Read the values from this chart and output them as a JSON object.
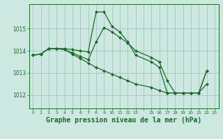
{
  "background_color": "#cce8e0",
  "grid_color": "#99ccbb",
  "line_color": "#1a6b2a",
  "marker": "D",
  "markersize": 2.0,
  "linewidth": 0.9,
  "title": "Graphe pression niveau de la mer (hPa)",
  "title_fontsize": 7,
  "tick_color": "#1a6b2a",
  "yticks": [
    1012,
    1013,
    1014,
    1015
  ],
  "xtick_labels": [
    "0",
    "1",
    "2",
    "3",
    "4",
    "5",
    "6",
    "7",
    "8",
    "9",
    "10",
    "11",
    "12",
    "13",
    "",
    "15",
    "16",
    "17",
    "18",
    "19",
    "20",
    "21",
    "22",
    "23"
  ],
  "xlim": [
    -0.5,
    23.5
  ],
  "ylim": [
    1011.4,
    1016.1
  ],
  "series": [
    [
      1013.8,
      1013.85,
      1014.1,
      1014.1,
      1014.1,
      1014.05,
      1014.0,
      1013.95,
      1015.75,
      1015.75,
      1015.1,
      1014.85,
      1014.4,
      1013.8,
      null,
      1013.5,
      1013.25,
      1012.1,
      1012.1,
      1012.1,
      1012.1,
      1012.1,
      1013.1,
      null
    ],
    [
      1013.8,
      1013.85,
      1014.1,
      1014.1,
      1014.05,
      1013.9,
      1013.75,
      1013.6,
      1014.4,
      1015.05,
      1014.85,
      1014.6,
      1014.35,
      1014.0,
      null,
      1013.7,
      1013.5,
      1012.65,
      1012.1,
      1012.1,
      1012.1,
      1012.1,
      1012.5,
      null
    ],
    [
      1013.8,
      1013.85,
      1014.1,
      1014.1,
      1014.05,
      1013.85,
      1013.65,
      1013.45,
      1013.25,
      1013.1,
      1012.95,
      1012.8,
      1012.65,
      1012.5,
      null,
      1012.35,
      1012.2,
      1012.1,
      1012.1,
      1012.1,
      1012.1,
      1012.1,
      1013.1,
      null
    ]
  ]
}
